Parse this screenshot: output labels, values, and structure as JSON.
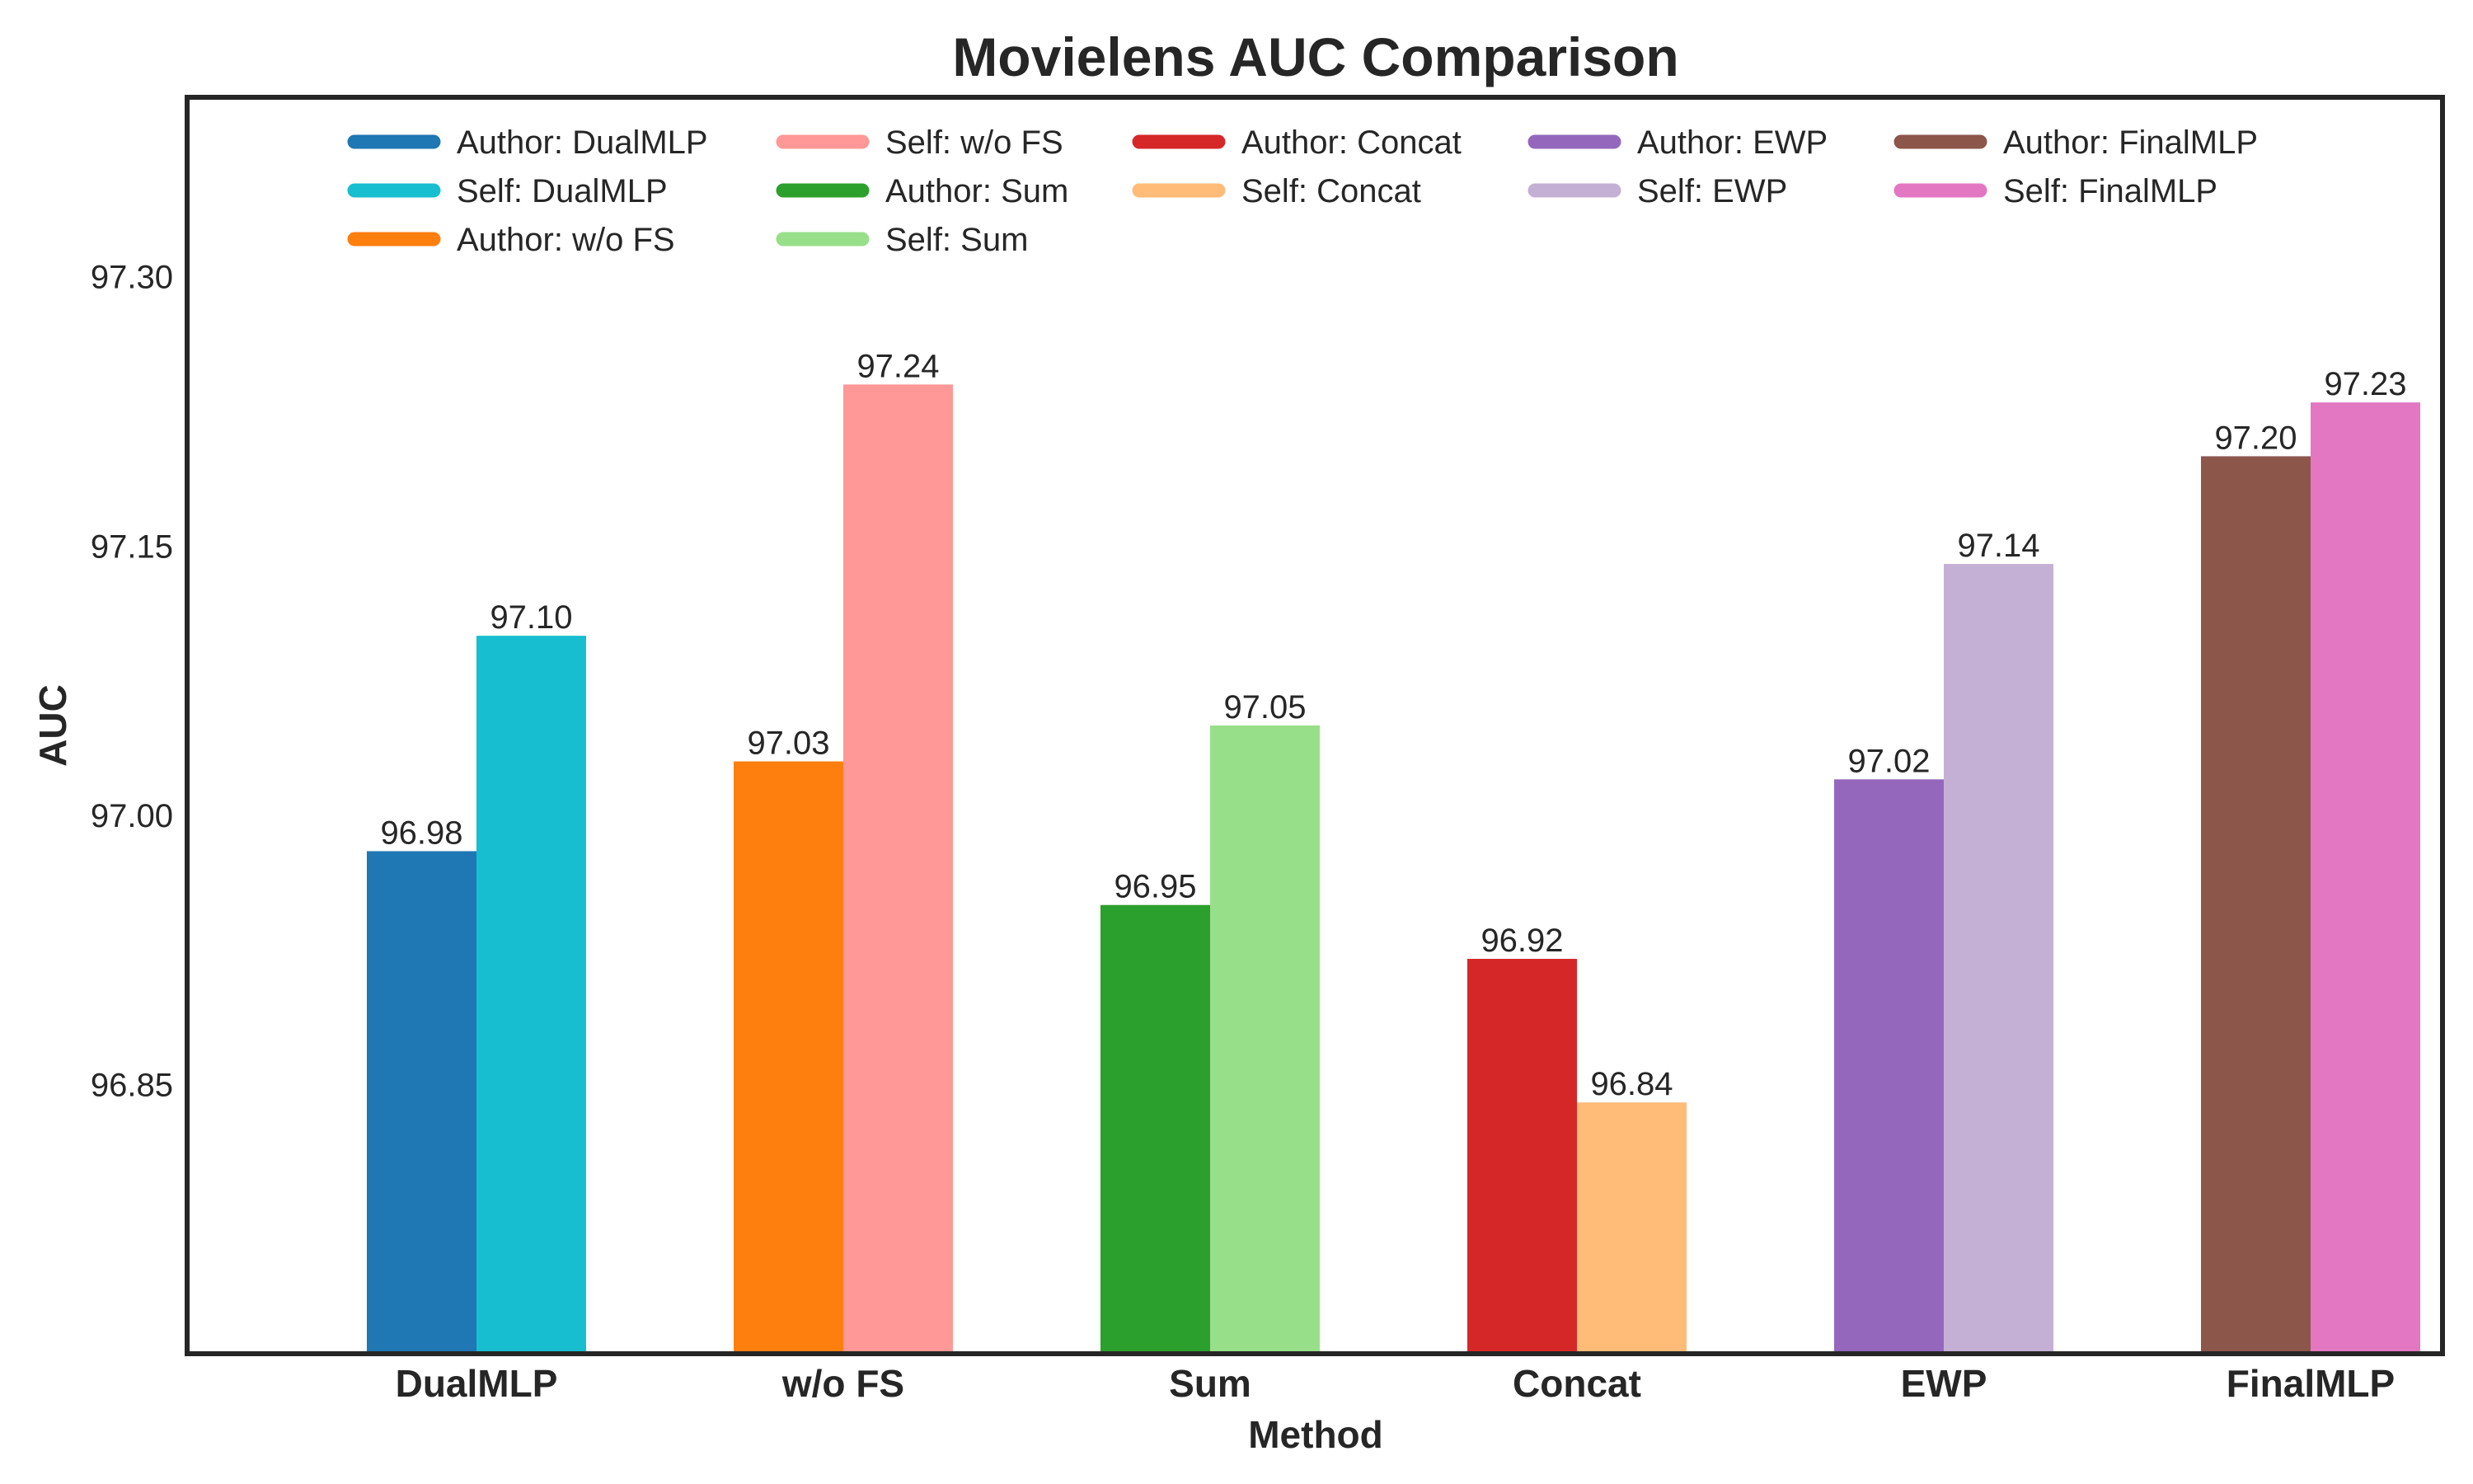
{
  "chart_data": {
    "type": "bar",
    "title": "Movielens AUC Comparison",
    "xlabel": "Method",
    "ylabel": "AUC",
    "ylim": [
      96.7,
      97.4
    ],
    "yticks": [
      "96.85",
      "97.00",
      "97.15",
      "97.30"
    ],
    "grid": false,
    "legend_position": "top",
    "categories": [
      "DualMLP",
      "w/o FS",
      "Sum",
      "Concat",
      "EWP",
      "FinalMLP"
    ],
    "groups": [
      {
        "category": "DualMLP",
        "bars": [
          {
            "name": "Author: DualMLP",
            "value": 96.98,
            "label": "96.98",
            "color": "#1f77b4"
          },
          {
            "name": "Self: DualMLP",
            "value": 97.1,
            "label": "97.10",
            "color": "#17becf"
          }
        ]
      },
      {
        "category": "w/o FS",
        "bars": [
          {
            "name": "Author: w/o FS",
            "value": 97.03,
            "label": "97.03",
            "color": "#ff7f0e"
          },
          {
            "name": "Self: w/o FS",
            "value": 97.24,
            "label": "97.24",
            "color": "#ff9896"
          }
        ]
      },
      {
        "category": "Sum",
        "bars": [
          {
            "name": "Author: Sum",
            "value": 96.95,
            "label": "96.95",
            "color": "#2ca02c"
          },
          {
            "name": "Self: Sum",
            "value": 97.05,
            "label": "97.05",
            "color": "#98df8a"
          }
        ]
      },
      {
        "category": "Concat",
        "bars": [
          {
            "name": "Author: Concat",
            "value": 96.92,
            "label": "96.92",
            "color": "#d62728"
          },
          {
            "name": "Self: Concat",
            "value": 96.84,
            "label": "96.84",
            "color": "#ffbb78"
          }
        ]
      },
      {
        "category": "EWP",
        "bars": [
          {
            "name": "Author: EWP",
            "value": 97.02,
            "label": "97.02",
            "color": "#9467bd"
          },
          {
            "name": "Self: EWP",
            "value": 97.14,
            "label": "97.14",
            "color": "#c5b0d5"
          }
        ]
      },
      {
        "category": "FinalMLP",
        "bars": [
          {
            "name": "Author: FinalMLP",
            "value": 97.2,
            "label": "97.20",
            "color": "#8c564b"
          },
          {
            "name": "Self: FinalMLP",
            "value": 97.23,
            "label": "97.23",
            "color": "#e377c2"
          }
        ]
      }
    ],
    "legend_columns": [
      [
        "Author: DualMLP",
        "Self: DualMLP",
        "Author: w/o FS"
      ],
      [
        "Self: w/o FS",
        "Author: Sum",
        "Self: Sum"
      ],
      [
        "Author: Concat",
        "Self: Concat"
      ],
      [
        "Author: EWP",
        "Self: EWP"
      ],
      [
        "Author: FinalMLP",
        "Self: FinalMLP"
      ]
    ]
  }
}
